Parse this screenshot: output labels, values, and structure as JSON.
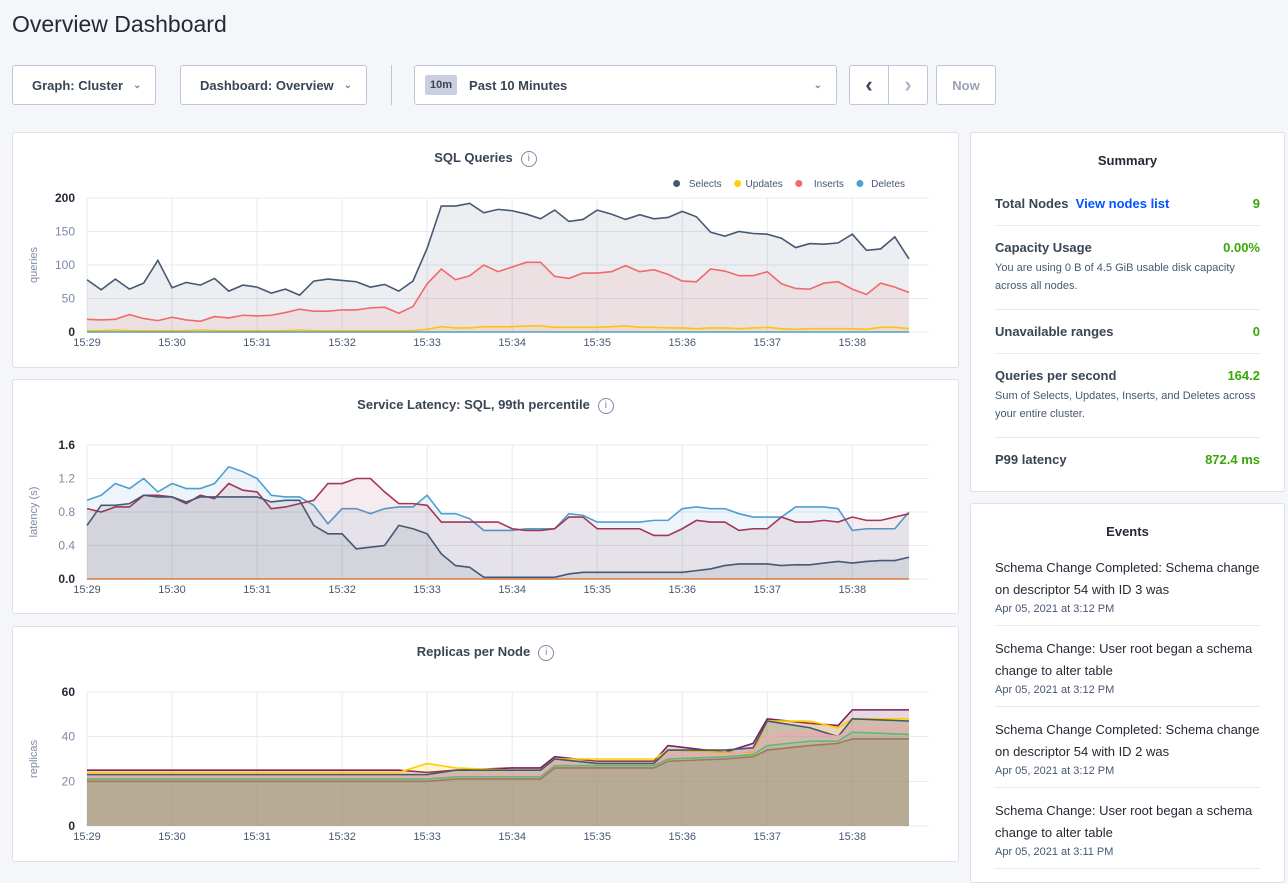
{
  "page_title": "Overview Dashboard",
  "toolbar": {
    "graph": "Graph: Cluster",
    "dashboard": "Dashboard: Overview",
    "time_badge": "10m",
    "time_range": "Past 10 Minutes",
    "prev": "‹",
    "next": "›",
    "now": "Now"
  },
  "colors": {
    "accent_green": "#37a806",
    "link_blue": "#0055ff",
    "selects": "#475872",
    "updates": "#ffcd02",
    "inserts": "#f16969",
    "deletes": "#4e9fd1"
  },
  "summary": {
    "title": "Summary",
    "total_nodes_label": "Total Nodes",
    "nodes_link": "View nodes list",
    "total_nodes": "9",
    "capacity_label": "Capacity Usage",
    "capacity": "0.00%",
    "capacity_desc": "You are using 0 B of 4.5 GiB usable disk capacity across all nodes.",
    "unavailable_label": "Unavailable ranges",
    "unavailable": "0",
    "qps_label": "Queries per second",
    "qps": "164.2",
    "qps_desc": "Sum of Selects, Updates, Inserts, and Deletes across your entire cluster.",
    "p99_label": "P99 latency",
    "p99": "872.4 ms"
  },
  "events": {
    "title": "Events",
    "items": [
      {
        "text": "Schema Change Completed: Schema change on descriptor 54 with ID 3 was",
        "date": "Apr 05, 2021 at 3:12 PM"
      },
      {
        "text": "Schema Change: User root began a schema change to alter table",
        "date": "Apr 05, 2021 at 3:12 PM"
      },
      {
        "text": "Schema Change Completed: Schema change on descriptor 54 with ID 2 was",
        "date": "Apr 05, 2021 at 3:12 PM"
      },
      {
        "text": "Schema Change: User root began a schema change to alter table",
        "date": "Apr 05, 2021 at 3:11 PM"
      }
    ]
  },
  "chart_data": [
    {
      "type": "area",
      "title": "SQL Queries",
      "info": "i",
      "ylabel": "queries",
      "ylim": [
        0,
        200
      ],
      "yticks": [
        "0",
        "50",
        "100",
        "150",
        "200"
      ],
      "xticks": [
        "15:29",
        "15:30",
        "15:31",
        "15:32",
        "15:33",
        "15:34",
        "15:35",
        "15:36",
        "15:37",
        "15:38"
      ],
      "x_start": "15:29:00",
      "sample_interval_s": 10,
      "legend": "top-right",
      "grid": true,
      "series": [
        {
          "name": "Selects",
          "color": "#475872",
          "values": [
            78,
            63,
            79,
            64,
            73,
            107,
            66,
            74,
            70,
            80,
            61,
            70,
            67,
            58,
            64,
            55,
            76,
            79,
            77,
            75,
            67,
            71,
            61,
            76,
            125,
            188,
            188,
            192,
            178,
            183,
            181,
            176,
            169,
            182,
            165,
            168,
            182,
            176,
            168,
            175,
            169,
            171,
            180,
            172,
            149,
            143,
            150,
            147,
            146,
            140,
            126,
            132,
            131,
            133,
            146,
            122,
            124,
            142,
            109
          ]
        },
        {
          "name": "Updates",
          "color": "#ffcd02",
          "values": [
            2,
            2,
            3,
            2,
            2,
            2,
            2,
            2,
            3,
            2,
            2,
            2,
            2,
            2,
            2,
            3,
            2,
            2,
            2,
            2,
            2,
            2,
            2,
            2,
            4,
            8,
            6,
            6,
            8,
            8,
            8,
            9,
            9,
            7,
            7,
            7,
            7,
            8,
            9,
            7,
            7,
            6,
            6,
            5,
            6,
            6,
            5,
            6,
            7,
            5,
            4,
            5,
            5,
            5,
            5,
            4,
            7,
            7,
            5
          ]
        },
        {
          "name": "Inserts",
          "color": "#f16969",
          "values": [
            19,
            18,
            19,
            26,
            20,
            17,
            22,
            18,
            16,
            23,
            21,
            25,
            24,
            25,
            29,
            34,
            31,
            31,
            33,
            33,
            36,
            37,
            28,
            38,
            72,
            94,
            78,
            84,
            100,
            90,
            97,
            104,
            104,
            83,
            80,
            88,
            88,
            90,
            99,
            90,
            93,
            86,
            76,
            75,
            94,
            91,
            84,
            84,
            90,
            72,
            65,
            64,
            73,
            75,
            64,
            56,
            73,
            67,
            59
          ]
        },
        {
          "name": "Deletes",
          "color": "#4e9fd1",
          "values": [
            0,
            0,
            0,
            0,
            0,
            0,
            0,
            0,
            0,
            0,
            0,
            0,
            0,
            0,
            0,
            0,
            0,
            0,
            0,
            0,
            0,
            0,
            0,
            0,
            0,
            0,
            0,
            0,
            0,
            0,
            0,
            0,
            0,
            0,
            0,
            0,
            0,
            0,
            0,
            0,
            0,
            0,
            0,
            0,
            0,
            0,
            0,
            0,
            0,
            0,
            0,
            0,
            0,
            0,
            0,
            0,
            0,
            0,
            0
          ]
        }
      ]
    },
    {
      "type": "area",
      "title": "Service Latency: SQL, 99th percentile",
      "info": "i",
      "ylabel": "latency (s)",
      "ylim": [
        0,
        1.6
      ],
      "yticks": [
        "0.0",
        "0.4",
        "0.8",
        "1.2",
        "1.6"
      ],
      "xticks": [
        "15:29",
        "15:30",
        "15:31",
        "15:32",
        "15:33",
        "15:34",
        "15:35",
        "15:36",
        "15:37",
        "15:38"
      ],
      "x_start": "15:29:00",
      "sample_interval_s": 10,
      "grid": true,
      "series": [
        {
          "color": "#4e9fd1",
          "values": [
            0.94,
            1.0,
            1.14,
            1.08,
            1.2,
            1.04,
            1.14,
            1.08,
            1.08,
            1.14,
            1.34,
            1.28,
            1.2,
            1.0,
            0.98,
            0.98,
            0.88,
            0.66,
            0.84,
            0.84,
            0.78,
            0.84,
            0.86,
            0.86,
            1.0,
            0.78,
            0.78,
            0.72,
            0.58,
            0.58,
            0.58,
            0.6,
            0.6,
            0.6,
            0.78,
            0.76,
            0.68,
            0.68,
            0.68,
            0.68,
            0.7,
            0.7,
            0.84,
            0.86,
            0.84,
            0.84,
            0.78,
            0.74,
            0.74,
            0.74,
            0.86,
            0.86,
            0.86,
            0.84,
            0.58,
            0.6,
            0.6,
            0.6,
            0.8
          ]
        },
        {
          "color": "#a43654",
          "values": [
            0.84,
            0.8,
            0.86,
            0.86,
            1.0,
            1.0,
            0.98,
            0.9,
            1.0,
            0.96,
            1.14,
            1.06,
            1.04,
            0.84,
            0.86,
            0.9,
            0.94,
            1.14,
            1.14,
            1.2,
            1.2,
            1.04,
            0.9,
            0.9,
            0.88,
            0.68,
            0.68,
            0.68,
            0.68,
            0.68,
            0.6,
            0.58,
            0.58,
            0.6,
            0.74,
            0.74,
            0.6,
            0.6,
            0.6,
            0.6,
            0.52,
            0.52,
            0.6,
            0.7,
            0.68,
            0.68,
            0.58,
            0.6,
            0.6,
            0.74,
            0.68,
            0.68,
            0.7,
            0.68,
            0.74,
            0.7,
            0.7,
            0.74,
            0.78
          ]
        },
        {
          "color": "#475872",
          "values": [
            0.64,
            0.88,
            0.88,
            0.9,
            1.0,
            0.98,
            0.98,
            0.92,
            0.98,
            0.98,
            0.98,
            0.98,
            0.98,
            0.92,
            0.94,
            0.94,
            0.64,
            0.54,
            0.54,
            0.36,
            0.38,
            0.4,
            0.64,
            0.6,
            0.54,
            0.3,
            0.16,
            0.14,
            0.02,
            0.02,
            0.02,
            0.02,
            0.02,
            0.02,
            0.06,
            0.08,
            0.08,
            0.08,
            0.08,
            0.08,
            0.08,
            0.08,
            0.08,
            0.1,
            0.12,
            0.16,
            0.18,
            0.18,
            0.18,
            0.16,
            0.17,
            0.17,
            0.19,
            0.21,
            0.19,
            0.21,
            0.22,
            0.22,
            0.26
          ]
        },
        {
          "color": "#d77a3e",
          "values": [
            0,
            0,
            0,
            0,
            0,
            0,
            0,
            0,
            0,
            0,
            0,
            0,
            0,
            0,
            0,
            0,
            0,
            0,
            0,
            0,
            0,
            0,
            0,
            0,
            0,
            0,
            0,
            0,
            0,
            0,
            0,
            0,
            0,
            0,
            0,
            0,
            0,
            0,
            0,
            0,
            0,
            0,
            0,
            0,
            0,
            0,
            0,
            0,
            0,
            0,
            0,
            0,
            0,
            0,
            0,
            0,
            0,
            0,
            0
          ]
        }
      ]
    },
    {
      "type": "area",
      "title": "Replicas per Node",
      "info": "i",
      "ylabel": "replicas",
      "ylim": [
        0,
        60
      ],
      "yticks": [
        "0",
        "20",
        "40",
        "60"
      ],
      "xticks": [
        "15:29",
        "15:30",
        "15:31",
        "15:32",
        "15:33",
        "15:34",
        "15:35",
        "15:36",
        "15:37",
        "15:38"
      ],
      "x": [
        "15:29:00",
        "15:32:40",
        "15:33:00",
        "15:33:20",
        "15:34:00",
        "15:34:20",
        "15:34:30",
        "15:35:00",
        "15:35:40",
        "15:35:50",
        "15:36:30",
        "15:36:50",
        "15:37:00",
        "15:37:30",
        "15:37:50",
        "15:38:00",
        "15:38:40"
      ],
      "grid": true,
      "series": [
        {
          "color": "#7a1f5a",
          "values": [
            25,
            25,
            24,
            25,
            26,
            26,
            31,
            29,
            29,
            36,
            33,
            37,
            48,
            46,
            45,
            52,
            52
          ]
        },
        {
          "color": "#ffcd02",
          "values": [
            24,
            24,
            28,
            26,
            25,
            25,
            30,
            30,
            30,
            34,
            33,
            33,
            47,
            47,
            44,
            48,
            48
          ]
        },
        {
          "color": "#475872",
          "values": [
            23,
            23,
            23,
            25,
            25,
            25,
            30,
            28,
            28,
            34,
            34,
            35,
            47,
            44,
            40,
            48,
            47
          ]
        },
        {
          "color": "#f5a3b5",
          "values": [
            22,
            22,
            22,
            23,
            23,
            23,
            28,
            27,
            27,
            32,
            32,
            34,
            40,
            42,
            40,
            44,
            44
          ]
        },
        {
          "color": "#5fb878",
          "values": [
            21,
            21,
            21,
            22,
            22,
            22,
            27,
            27,
            27,
            30,
            31,
            32,
            36,
            38,
            38,
            42,
            41
          ]
        },
        {
          "color": "#a1775b",
          "values": [
            20,
            20,
            20,
            21,
            21,
            21,
            26,
            26,
            26,
            29,
            30,
            31,
            34,
            36,
            37,
            39,
            39
          ]
        }
      ]
    }
  ]
}
